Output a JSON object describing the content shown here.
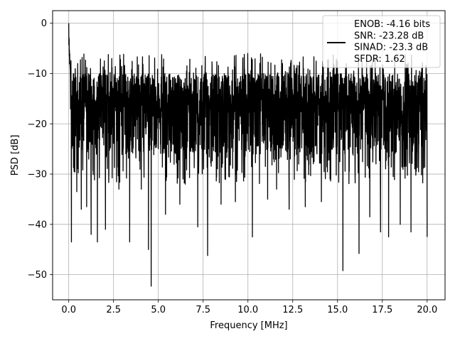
{
  "chart_data": {
    "type": "line",
    "title": "",
    "xlabel": "Frequency [MHz]",
    "ylabel": "PSD [dB]",
    "xlim": [
      -0.9,
      21.0
    ],
    "ylim": [
      -55,
      2.5
    ],
    "xticks": [
      0.0,
      2.5,
      5.0,
      7.5,
      10.0,
      12.5,
      15.0,
      17.5,
      20.0
    ],
    "xtick_labels": [
      "0.0",
      "2.5",
      "5.0",
      "7.5",
      "10.0",
      "12.5",
      "15.0",
      "17.5",
      "20.0"
    ],
    "yticks": [
      0,
      -10,
      -20,
      -30,
      -40,
      -50
    ],
    "ytick_labels": [
      "0",
      "−10",
      "−20",
      "−30",
      "−40",
      "−50"
    ],
    "grid": true,
    "legend_placement": "top-right",
    "legend_lines": [
      "ENOB: -4.16 bits",
      "SNR: -23.28 dB",
      "SINAD: -23.3 dB",
      "SFDR: 1.62"
    ],
    "series": [
      {
        "color": "#000000",
        "description": "Noise-like PSD spanning 0 to 20 MHz",
        "x_range": [
          0.0,
          20.0
        ],
        "peak": {
          "x": 0.0,
          "y": 0.0
        },
        "typical_top": -10,
        "typical_bottom": -28,
        "dips": [
          {
            "x": 0.15,
            "y": -43.5
          },
          {
            "x": 0.45,
            "y": -33.5
          },
          {
            "x": 0.7,
            "y": -37.0
          },
          {
            "x": 1.0,
            "y": -36.5
          },
          {
            "x": 1.25,
            "y": -42.0
          },
          {
            "x": 1.6,
            "y": -43.5
          },
          {
            "x": 2.05,
            "y": -41.0
          },
          {
            "x": 2.8,
            "y": -33.0
          },
          {
            "x": 3.4,
            "y": -43.5
          },
          {
            "x": 4.05,
            "y": -33.0
          },
          {
            "x": 4.45,
            "y": -45.0
          },
          {
            "x": 4.6,
            "y": -52.3
          },
          {
            "x": 5.4,
            "y": -38.0
          },
          {
            "x": 6.2,
            "y": -36.0
          },
          {
            "x": 6.5,
            "y": -32.0
          },
          {
            "x": 7.2,
            "y": -40.5
          },
          {
            "x": 7.75,
            "y": -46.2
          },
          {
            "x": 8.5,
            "y": -36.0
          },
          {
            "x": 9.3,
            "y": -35.5
          },
          {
            "x": 10.25,
            "y": -42.5
          },
          {
            "x": 11.1,
            "y": -35.0
          },
          {
            "x": 11.6,
            "y": -33.0
          },
          {
            "x": 12.3,
            "y": -37.0
          },
          {
            "x": 13.2,
            "y": -36.5
          },
          {
            "x": 14.1,
            "y": -35.5
          },
          {
            "x": 15.3,
            "y": -49.2
          },
          {
            "x": 16.2,
            "y": -45.8
          },
          {
            "x": 16.8,
            "y": -38.5
          },
          {
            "x": 17.4,
            "y": -41.5
          },
          {
            "x": 17.85,
            "y": -42.5
          },
          {
            "x": 18.5,
            "y": -40.0
          },
          {
            "x": 19.1,
            "y": -41.5
          },
          {
            "x": 20.0,
            "y": -42.5
          }
        ]
      }
    ]
  }
}
